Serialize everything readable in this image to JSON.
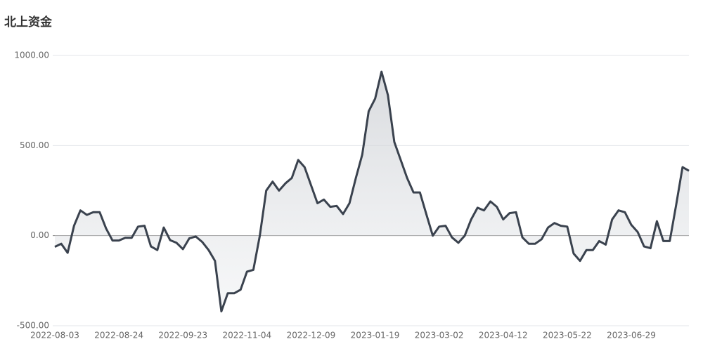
{
  "chart_data": {
    "type": "line",
    "title": "北上资金",
    "categories": [
      "2022-08-03",
      null,
      null,
      null,
      null,
      null,
      null,
      null,
      null,
      null,
      "2022-08-24",
      null,
      null,
      null,
      null,
      null,
      null,
      null,
      null,
      null,
      "2022-09-23",
      null,
      null,
      null,
      null,
      null,
      null,
      null,
      null,
      null,
      "2022-11-04",
      null,
      null,
      null,
      null,
      null,
      null,
      null,
      null,
      null,
      "2022-12-09",
      null,
      null,
      null,
      null,
      null,
      null,
      null,
      null,
      null,
      "2023-01-19",
      null,
      null,
      null,
      null,
      null,
      null,
      null,
      null,
      null,
      "2023-03-02",
      null,
      null,
      null,
      null,
      null,
      null,
      null,
      null,
      null,
      "2023-04-12",
      null,
      null,
      null,
      null,
      null,
      null,
      null,
      null,
      null,
      "2023-05-22",
      null,
      null,
      null,
      null,
      null,
      null,
      null,
      null,
      null,
      "2023-06-29",
      null,
      null,
      null,
      null,
      null,
      null,
      null,
      null,
      null
    ],
    "series": [
      {
        "color": "#3a424e",
        "values": [
          -62,
          -45,
          -95,
          55,
          140,
          115,
          130,
          130,
          40,
          -27,
          -27,
          -12,
          -12,
          50,
          55,
          -60,
          -80,
          45,
          -25,
          -40,
          -75,
          -15,
          -5,
          -35,
          -80,
          -140,
          -420,
          -320,
          -320,
          -300,
          -200,
          -190,
          0,
          250,
          300,
          250,
          290,
          320,
          420,
          380,
          280,
          180,
          200,
          160,
          165,
          120,
          180,
          320,
          450,
          690,
          760,
          910,
          780,
          520,
          420,
          320,
          240,
          240,
          120,
          0,
          50,
          55,
          -10,
          -40,
          0,
          90,
          155,
          140,
          190,
          160,
          90,
          125,
          130,
          -10,
          -45,
          -45,
          -20,
          45,
          70,
          55,
          50,
          -100,
          -140,
          -80,
          -80,
          -30,
          -50,
          90,
          140,
          130,
          60,
          20,
          -60,
          -70,
          80,
          -30,
          -30,
          170,
          380,
          360
        ]
      }
    ],
    "ylim": [
      -500,
      1000
    ],
    "yticks": [
      {
        "value": -500,
        "label": "-500.00"
      },
      {
        "value": 0,
        "label": "0.00"
      },
      {
        "value": 500,
        "label": "500.00"
      },
      {
        "value": 1000,
        "label": "1000.00"
      }
    ],
    "grid": true
  }
}
